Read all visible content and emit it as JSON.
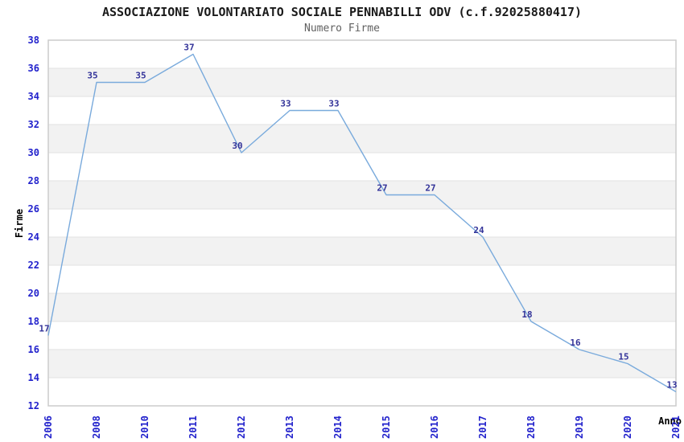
{
  "page": {
    "background": "#ffffff"
  },
  "chart_data": {
    "type": "line",
    "title": "ASSOCIAZIONE VOLONTARIATO SOCIALE PENNABILLI ODV (c.f.92025880417)",
    "subtitle": "Numero Firme",
    "xlabel": "Anno",
    "ylabel": "Firme",
    "categories": [
      "2006",
      "2008",
      "2010",
      "2011",
      "2012",
      "2013",
      "2014",
      "2015",
      "2016",
      "2017",
      "2018",
      "2019",
      "2020",
      "2021"
    ],
    "series": [
      {
        "name": "Numero Firme",
        "values": [
          17,
          35,
          35,
          37,
          30,
          33,
          33,
          27,
          27,
          24,
          18,
          16,
          15,
          13
        ]
      }
    ],
    "ylim": [
      12,
      38
    ],
    "ytick_step": 2,
    "yticks": [
      12,
      14,
      16,
      18,
      20,
      22,
      24,
      26,
      28,
      30,
      32,
      34,
      36,
      38
    ],
    "grid": "horizontal-bands",
    "legend": "none",
    "data_labels": true,
    "colors": {
      "line": "#79aadc",
      "tick_label": "#2222cc",
      "data_label": "#333399",
      "band": "#f2f2f2",
      "gridline": "#e2e2e2",
      "plot_border": "#cccccc",
      "title": "#1a1a1a",
      "subtitle": "#616161",
      "axis_label": "#000000"
    }
  }
}
